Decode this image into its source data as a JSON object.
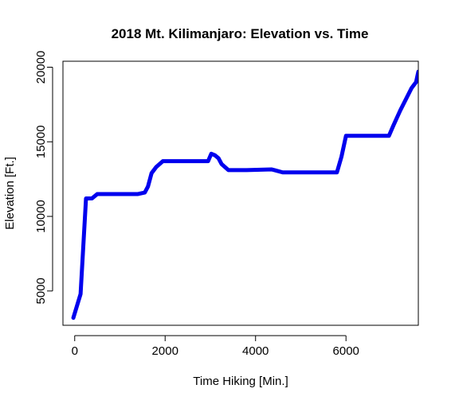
{
  "chart_data": {
    "type": "line",
    "title": "2018 Mt. Kilimanjaro: Elevation vs. Time",
    "xlabel": "Time Hiking [Min.]",
    "ylabel": "Elevation [Ft.]",
    "xlim": [
      -260,
      7600
    ],
    "ylim": [
      2700,
      20400
    ],
    "xticks": [
      0,
      2000,
      4000,
      6000
    ],
    "yticks": [
      5000,
      10000,
      15000,
      20000
    ],
    "xtick_labels": [
      "0",
      "2000",
      "4000",
      "6000"
    ],
    "ytick_labels": [
      "5000",
      "10000",
      "15000",
      "20000"
    ],
    "grid": false,
    "legend": false,
    "series": [
      {
        "color": "#0000ee",
        "x": [
          -30,
          130,
          250,
          380,
          500,
          700,
          1000,
          1400,
          1550,
          1620,
          1700,
          1800,
          1950,
          2200,
          2600,
          2950,
          3020,
          3100,
          3180,
          3250,
          3400,
          3800,
          4350,
          4420,
          4600,
          5000,
          5500,
          5800,
          5900,
          6000,
          6200,
          6500,
          6950,
          7050,
          7200,
          7350,
          7450,
          7550,
          7600
        ],
        "y": [
          3200,
          4800,
          11200,
          11200,
          11500,
          11500,
          11500,
          11500,
          11600,
          12000,
          12900,
          13300,
          13700,
          13700,
          13700,
          13700,
          14200,
          14100,
          13900,
          13500,
          13100,
          13100,
          13150,
          13100,
          12950,
          12950,
          12950,
          12950,
          14000,
          15400,
          15400,
          15400,
          15400,
          16100,
          17100,
          18000,
          18600,
          19000,
          19700
        ]
      }
    ]
  }
}
